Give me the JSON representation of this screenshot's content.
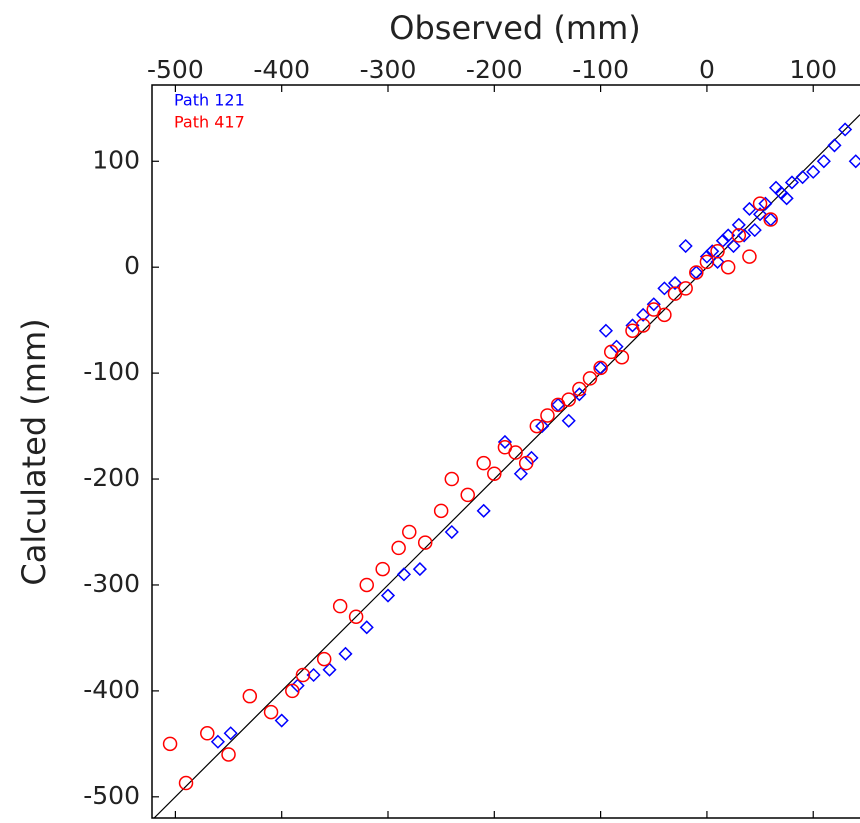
{
  "chart_data": {
    "type": "scatter",
    "xlabel": "Observed (mm)",
    "ylabel": "Calculated (mm)",
    "xlim": [
      -522,
      144
    ],
    "ylim": [
      -520,
      172
    ],
    "xticks": [
      -500,
      -400,
      -300,
      -200,
      -100,
      0,
      100
    ],
    "yticks": [
      -500,
      -400,
      -300,
      -200,
      -100,
      0,
      100
    ],
    "legend": "upper left",
    "series": [
      {
        "name": "Path 121",
        "color": "#0000ff",
        "marker": "diamond",
        "x": [
          -460,
          -448,
          -400,
          -385,
          -370,
          -355,
          -340,
          -320,
          -300,
          -285,
          -270,
          -240,
          -210,
          -190,
          -175,
          -165,
          -155,
          -140,
          -130,
          -120,
          -100,
          -95,
          -85,
          -70,
          -60,
          -50,
          -40,
          -30,
          -20,
          -10,
          0,
          5,
          10,
          15,
          20,
          25,
          30,
          35,
          40,
          45,
          50,
          55,
          60,
          65,
          70,
          75,
          80,
          90,
          100,
          110,
          120,
          130,
          140
        ],
        "values": [
          -448,
          -440,
          -428,
          -395,
          -385,
          -380,
          -365,
          -340,
          -310,
          -290,
          -285,
          -250,
          -230,
          -165,
          -195,
          -180,
          -150,
          -130,
          -145,
          -120,
          -95,
          -60,
          -75,
          -55,
          -45,
          -35,
          -20,
          -15,
          20,
          -5,
          10,
          15,
          5,
          25,
          30,
          20,
          40,
          30,
          55,
          35,
          50,
          60,
          45,
          75,
          70,
          65,
          80,
          85,
          90,
          100,
          115,
          130,
          100
        ]
      },
      {
        "name": "Path 417",
        "color": "#ff0000",
        "marker": "circle",
        "x": [
          -505,
          -490,
          -470,
          -450,
          -430,
          -410,
          -390,
          -380,
          -360,
          -345,
          -330,
          -320,
          -305,
          -290,
          -280,
          -265,
          -250,
          -240,
          -225,
          -210,
          -200,
          -190,
          -180,
          -170,
          -160,
          -150,
          -140,
          -130,
          -120,
          -110,
          -100,
          -90,
          -80,
          -70,
          -60,
          -50,
          -40,
          -30,
          -20,
          -10,
          0,
          10,
          20,
          30,
          40,
          50,
          60
        ],
        "values": [
          -450,
          -487,
          -440,
          -460,
          -405,
          -420,
          -400,
          -385,
          -370,
          -320,
          -330,
          -300,
          -285,
          -265,
          -250,
          -260,
          -230,
          -200,
          -215,
          -185,
          -195,
          -170,
          -175,
          -185,
          -150,
          -140,
          -130,
          -125,
          -115,
          -105,
          -95,
          -80,
          -85,
          -60,
          -55,
          -40,
          -45,
          -25,
          -20,
          -5,
          5,
          15,
          0,
          30,
          10,
          60,
          45
        ]
      }
    ]
  }
}
